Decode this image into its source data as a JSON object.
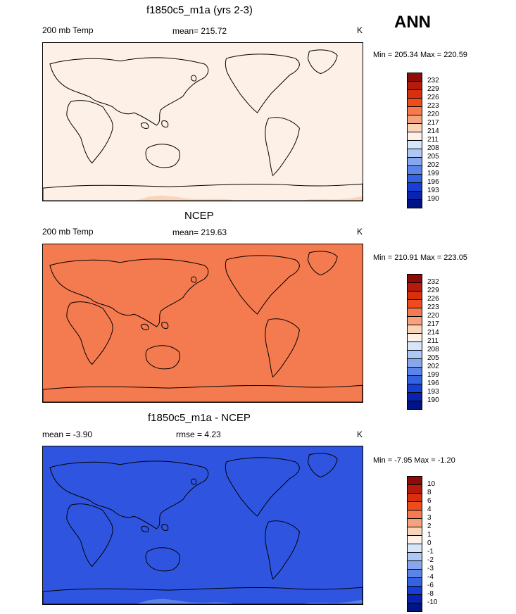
{
  "season": "ANN",
  "panels": [
    {
      "title": "f1850c5_m1a (yrs 2-3)",
      "left_label": "200 mb Temp",
      "center_label": "mean= 215.72",
      "units": "K",
      "minmax": "Min = 205.34 Max = 220.59",
      "colorbar": {
        "labels": [
          "232",
          "229",
          "226",
          "223",
          "220",
          "217",
          "214",
          "211",
          "208",
          "205",
          "202",
          "199",
          "196",
          "193",
          "190"
        ],
        "colors": [
          "#8e0b07",
          "#b51a0c",
          "#d8300d",
          "#ee4c1d",
          "#f47a4f",
          "#f6a27d",
          "#fbd3b9",
          "#fdf0e6",
          "#d5e6fa",
          "#aec7f4",
          "#86a7ee",
          "#5b84e8",
          "#3561e3",
          "#163fd6",
          "#0a22b0",
          "#001483"
        ]
      },
      "map_bands": [
        "#aec7f4",
        "#d5e6fa",
        "#fdf0e6",
        "#fbd3b9",
        "#f6a27d",
        "#f6a27d",
        "#fbd3b9",
        "#fdf0e6"
      ]
    },
    {
      "title": "NCEP",
      "left_label": "200 mb Temp",
      "center_label": "mean= 219.63",
      "units": "K",
      "minmax": "Min = 210.91 Max = 223.05",
      "colorbar": {
        "labels": [
          "232",
          "229",
          "226",
          "223",
          "220",
          "217",
          "214",
          "211",
          "208",
          "205",
          "202",
          "199",
          "196",
          "193",
          "190"
        ],
        "colors": [
          "#8e0b07",
          "#b51a0c",
          "#d8300d",
          "#ee4c1d",
          "#f47a4f",
          "#f6a27d",
          "#fbd3b9",
          "#fdf0e6",
          "#d5e6fa",
          "#aec7f4",
          "#86a7ee",
          "#5b84e8",
          "#3561e3",
          "#163fd6",
          "#0a22b0",
          "#001483"
        ]
      },
      "map_bands": [
        "#fdf0e6",
        "#fbd3b9",
        "#f6a27d",
        "#f47a4f",
        "#f47a4f",
        "#f6a27d",
        "#f47a4f",
        "#f47a4f"
      ]
    },
    {
      "title": "f1850c5_m1a - NCEP",
      "left_label": "mean =  -3.90",
      "center_label": "rmse =   4.23",
      "units": "K",
      "minmax": "Min =  -7.95 Max =  -1.20",
      "colorbar": {
        "labels": [
          "10",
          "8",
          "6",
          "4",
          "3",
          "2",
          "1",
          "0",
          "-1",
          "-2",
          "-3",
          "-4",
          "-6",
          "-8",
          "-10"
        ],
        "colors": [
          "#8e0b07",
          "#b51a0c",
          "#d8300d",
          "#ee4c1d",
          "#f47a4f",
          "#f6a27d",
          "#fbd3b9",
          "#fdf0e6",
          "#d5e6fa",
          "#aec7f4",
          "#86a7ee",
          "#5b84e8",
          "#3561e3",
          "#163fd6",
          "#0a22b0",
          "#001483"
        ]
      },
      "map_bands": [
        "#ffffff",
        "#3561e3",
        "#5b84e8",
        "#86a7ee",
        "#aec7f4",
        "#86a7ee",
        "#5b84e8",
        "#2f55e0"
      ]
    }
  ]
}
